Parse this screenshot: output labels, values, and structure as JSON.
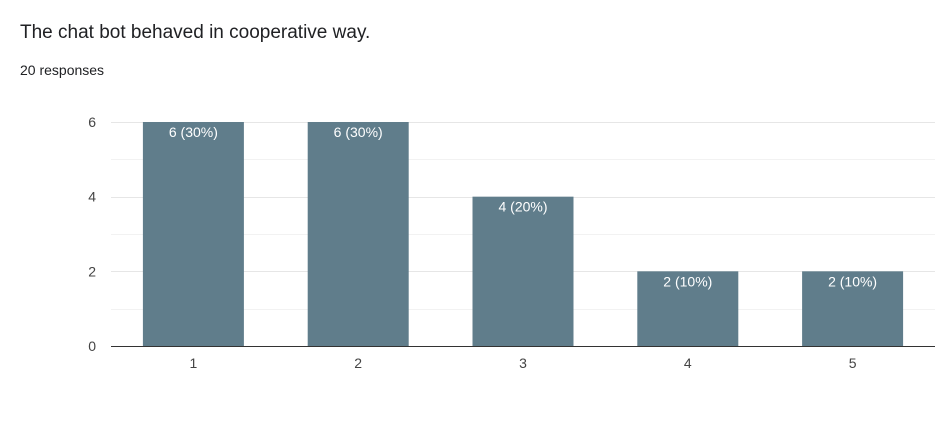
{
  "question": {
    "title": "The chat bot behaved in cooperative way.",
    "responses": "20 responses"
  },
  "colors": {
    "bar": "#607d8b",
    "gridline": "#e6e6e6",
    "minor_gridline": "#f2f2f2",
    "baseline": "#333333",
    "bar_label": "#ffffff"
  },
  "chart_data": {
    "type": "bar",
    "title": "The chat bot behaved in cooperative way.",
    "xlabel": "",
    "ylabel": "",
    "categories": [
      "1",
      "2",
      "3",
      "4",
      "5"
    ],
    "values": [
      6,
      6,
      4,
      2,
      2
    ],
    "data_labels": [
      "6 (30%)",
      "6 (30%)",
      "4 (20%)",
      "2 (10%)",
      "2 (10%)"
    ],
    "ylim": [
      0,
      6
    ],
    "yticks": [
      "0",
      "2",
      "4",
      "6"
    ],
    "grid": true,
    "legend": "none"
  }
}
